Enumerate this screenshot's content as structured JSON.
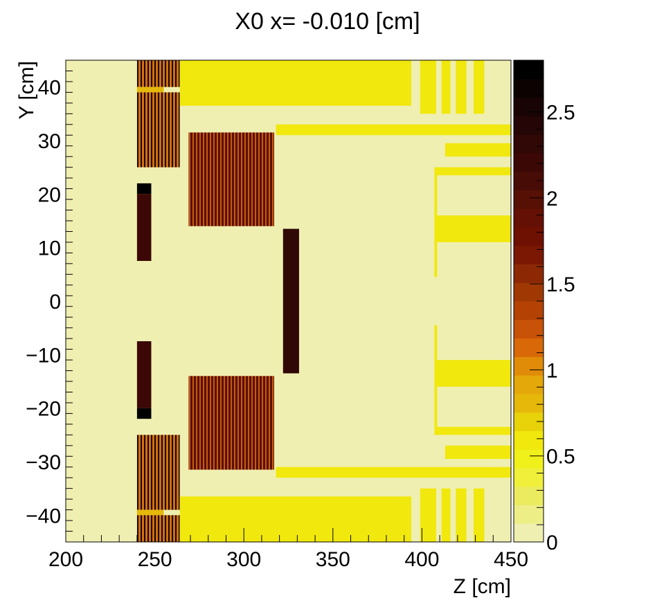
{
  "chart_data": {
    "type": "heatmap",
    "title": "X0 x= -0.010 [cm]",
    "xlabel": "Z [cm]",
    "ylabel": "Y [cm]",
    "xlim": [
      200,
      450
    ],
    "ylim": [
      -45,
      45
    ],
    "x_ticks": [
      200,
      250,
      300,
      350,
      400,
      450
    ],
    "x_tick_labels": [
      "200",
      "250",
      "300",
      "350",
      "400",
      "450"
    ],
    "y_ticks": [
      -40,
      -30,
      -20,
      -10,
      0,
      10,
      20,
      30,
      40
    ],
    "y_tick_labels": [
      "−40",
      "−30",
      "−20",
      "−10",
      "0",
      "10",
      "20",
      "30",
      "40"
    ],
    "colorbar": {
      "range": [
        0,
        2.8
      ],
      "tick_values": [
        0,
        0.5,
        1,
        1.5,
        2,
        2.5
      ],
      "tick_labels": [
        "0",
        "0.5",
        "1",
        "1.5",
        "2",
        "2.5"
      ],
      "colors": [
        "#efefb2",
        "#edee86",
        "#ebeb60",
        "#f0f03a",
        "#f0f01a",
        "#f1e80e",
        "#e8d20a",
        "#e5b80a",
        "#e5a80a",
        "#e08c08",
        "#d86808",
        "#c85208",
        "#b44204",
        "#a03804",
        "#8c2804",
        "#7a1804",
        "#6e1002",
        "#641004",
        "#561004",
        "#480c06",
        "#3c0806",
        "#300806",
        "#240606",
        "#180404",
        "#0c0202",
        "#000000"
      ]
    },
    "background_value": 0.05,
    "regions": [
      {
        "z": [
          240,
          264
        ],
        "y": [
          40,
          45
        ],
        "value": 1.6,
        "pattern": "stripes"
      },
      {
        "z": [
          240,
          255
        ],
        "y": [
          39,
          40
        ],
        "value": 0.8
      },
      {
        "z": [
          240,
          264
        ],
        "y": [
          25,
          39
        ],
        "value": 1.6,
        "pattern": "stripes"
      },
      {
        "z": [
          240,
          248
        ],
        "y": [
          20,
          22
        ],
        "value": 2.7
      },
      {
        "z": [
          240,
          248
        ],
        "y": [
          7.5,
          20
        ],
        "value": 2.2
      },
      {
        "z": [
          240,
          248
        ],
        "y": [
          -20,
          -7.5
        ],
        "value": 2.2
      },
      {
        "z": [
          240,
          248
        ],
        "y": [
          -22,
          -20
        ],
        "value": 2.7
      },
      {
        "z": [
          240,
          264
        ],
        "y": [
          -39,
          -25
        ],
        "value": 1.6,
        "pattern": "stripes"
      },
      {
        "z": [
          240,
          255
        ],
        "y": [
          -40,
          -39
        ],
        "value": 0.8
      },
      {
        "z": [
          240,
          264
        ],
        "y": [
          -45,
          -40
        ],
        "value": 1.6,
        "pattern": "stripes"
      },
      {
        "z": [
          264,
          394
        ],
        "y": [
          36.5,
          45
        ],
        "value": 0.55
      },
      {
        "z": [
          264,
          394
        ],
        "y": [
          -45,
          -36.5
        ],
        "value": 0.55
      },
      {
        "z": [
          269,
          317
        ],
        "y": [
          14,
          31.5
        ],
        "value": 2.4,
        "pattern": "stripes"
      },
      {
        "z": [
          269,
          317
        ],
        "y": [
          -31.5,
          -14
        ],
        "value": 2.4,
        "pattern": "stripes"
      },
      {
        "z": [
          322,
          331
        ],
        "y": [
          -13.5,
          13.5
        ],
        "value": 2.3
      },
      {
        "z": [
          318,
          450
        ],
        "y": [
          31,
          33
        ],
        "value": 0.55
      },
      {
        "z": [
          318,
          450
        ],
        "y": [
          -33,
          -31
        ],
        "value": 0.55
      },
      {
        "z": [
          399,
          408
        ],
        "y": [
          35,
          45
        ],
        "value": 0.55
      },
      {
        "z": [
          411,
          416
        ],
        "y": [
          35,
          45
        ],
        "value": 0.55
      },
      {
        "z": [
          419,
          425
        ],
        "y": [
          35,
          45
        ],
        "value": 0.55
      },
      {
        "z": [
          429,
          435
        ],
        "y": [
          35,
          45
        ],
        "value": 0.55
      },
      {
        "z": [
          399,
          408
        ],
        "y": [
          -45,
          -35
        ],
        "value": 0.55
      },
      {
        "z": [
          411,
          416
        ],
        "y": [
          -45,
          -35
        ],
        "value": 0.55
      },
      {
        "z": [
          419,
          425
        ],
        "y": [
          -45,
          -35
        ],
        "value": 0.55
      },
      {
        "z": [
          429,
          435
        ],
        "y": [
          -45,
          -35
        ],
        "value": 0.55
      },
      {
        "z": [
          413,
          450
        ],
        "y": [
          27,
          29.5
        ],
        "value": 0.55
      },
      {
        "z": [
          413,
          450
        ],
        "y": [
          -29.5,
          -27
        ],
        "value": 0.55
      },
      {
        "z": [
          408,
          450
        ],
        "y": [
          23.5,
          25
        ],
        "value": 0.55
      },
      {
        "z": [
          408,
          450
        ],
        "y": [
          -25,
          -23.5
        ],
        "value": 0.55
      },
      {
        "z": [
          408,
          450
        ],
        "y": [
          11,
          16
        ],
        "value": 0.55
      },
      {
        "z": [
          408,
          450
        ],
        "y": [
          -16,
          -11
        ],
        "value": 0.55
      },
      {
        "z": [
          407,
          408.5
        ],
        "y": [
          4.5,
          25
        ],
        "value": 0.55
      },
      {
        "z": [
          407,
          408.5
        ],
        "y": [
          -25,
          -4.5
        ],
        "value": 0.55
      }
    ]
  }
}
